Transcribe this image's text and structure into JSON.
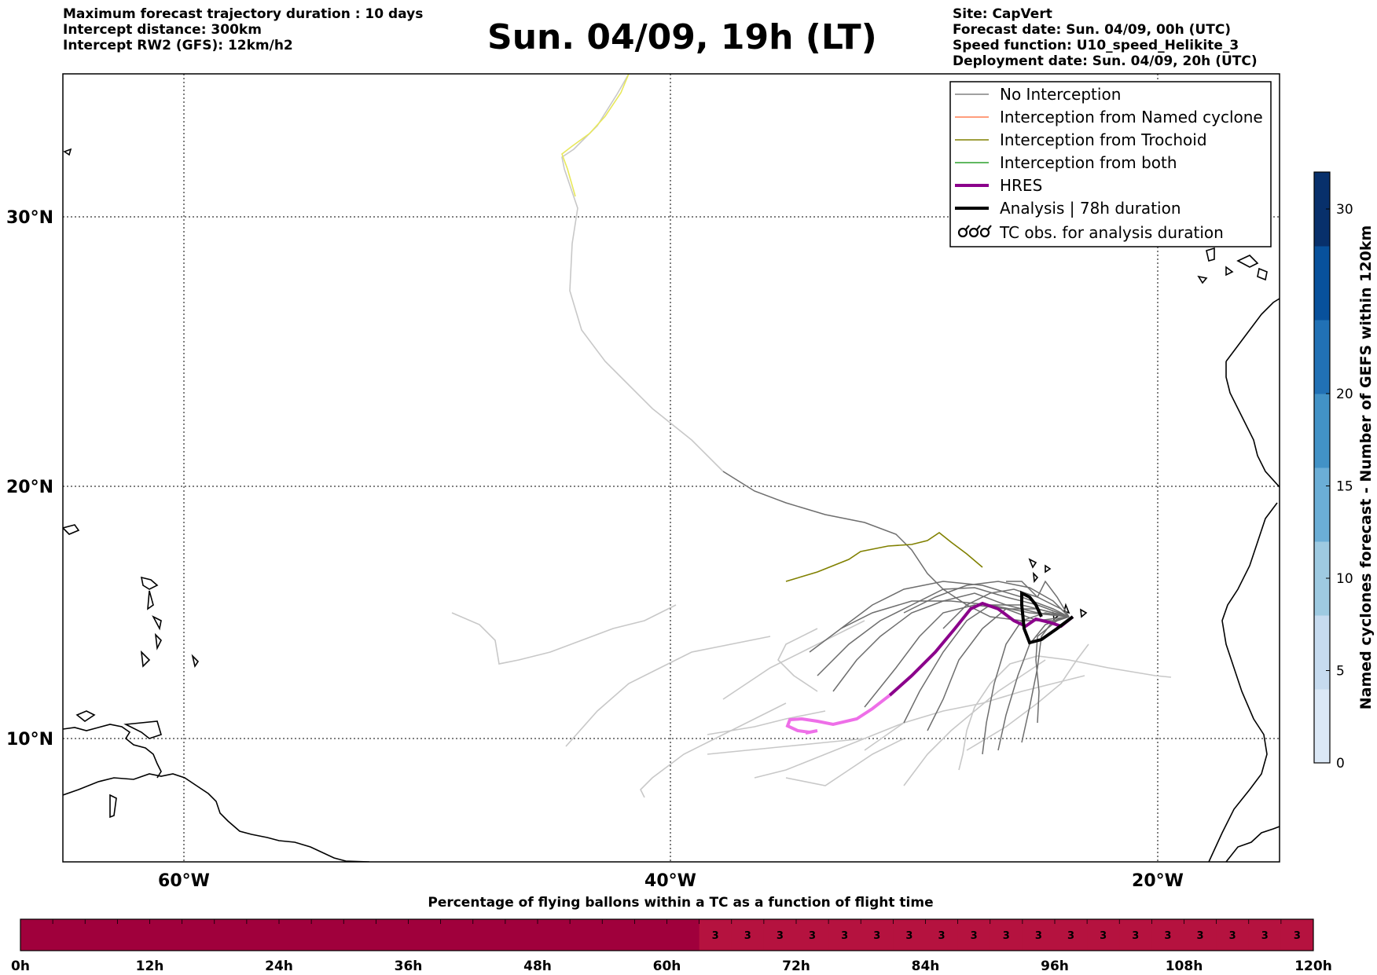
{
  "header": {
    "left_lines": [
      "Maximum forecast trajectory duration : 10 days",
      "Intercept distance: 300km",
      "Intercept RW2 (GFS):  12km/h2"
    ],
    "title": "Sun. 04/09, 19h (LT)",
    "right_lines": [
      "Site: CapVert",
      "Forecast date: Sun. 04/09, 00h (UTC)",
      "Speed function: U10_speed_Helikite_3",
      "Deployment date: Sun. 04/09, 20h (UTC)"
    ]
  },
  "map": {
    "lat_labels": [
      "30°N",
      "20°N",
      "10°N"
    ],
    "lon_labels": [
      "60°W",
      "40°W",
      "20°W"
    ],
    "grid": true
  },
  "legend": {
    "items": [
      {
        "label": "No Interception",
        "color": "#808080",
        "icon": "line"
      },
      {
        "label": "Interception from Named cyclone",
        "color": "#ff7f50",
        "icon": "line"
      },
      {
        "label": "Interception from Trochoid",
        "color": "#808000",
        "icon": "line"
      },
      {
        "label": "Interception from both",
        "color": "#2ca02c",
        "icon": "line"
      },
      {
        "label": "HRES",
        "color": "#8b008b",
        "icon": "thick-line"
      },
      {
        "label": "Analysis | 78h duration",
        "color": "#000000",
        "icon": "thick-line"
      },
      {
        "label": "TC obs. for analysis duration",
        "color": "#000000",
        "icon": "cyclone-symbols"
      }
    ]
  },
  "colorbar": {
    "label": "Named cyclones forecast - Number of GEFS within 120km",
    "ticks": [
      "0",
      "5",
      "10",
      "15",
      "20",
      "30"
    ],
    "colors": [
      "#dbe8f6",
      "#c6dbef",
      "#9ecae1",
      "#6baed6",
      "#4292c6",
      "#2171b5",
      "#08519c",
      "#08306b"
    ]
  },
  "flight_bar": {
    "title": "Percentage of flying ballons within a TC as a function of flight time",
    "ticks": [
      "0h",
      "12h",
      "24h",
      "36h",
      "48h",
      "60h",
      "72h",
      "84h",
      "96h",
      "108h",
      "120h"
    ],
    "values": [
      0,
      0,
      0,
      0,
      0,
      0,
      0,
      0,
      0,
      0,
      0,
      0,
      0,
      0,
      0,
      0,
      0,
      0,
      0,
      0,
      0,
      3,
      3,
      3,
      3,
      3,
      3,
      3,
      3,
      3,
      3,
      3,
      3,
      3,
      3,
      3,
      3,
      3,
      3,
      3
    ],
    "colors": {
      "zero": "#a0003c",
      "nonzero": "#b5123f"
    }
  }
}
